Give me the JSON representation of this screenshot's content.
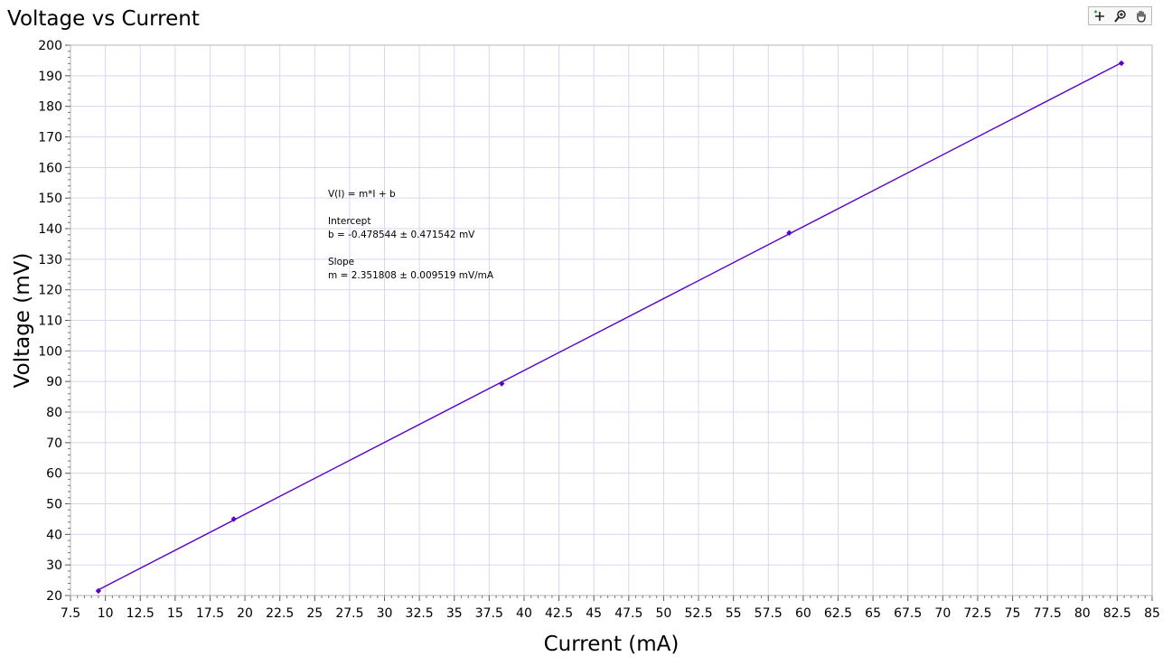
{
  "title": "Voltage vs Current",
  "toolbar": {
    "tools": [
      {
        "name": "zoom-crosshair-icon"
      },
      {
        "name": "zoom-magnifier-icon"
      },
      {
        "name": "pan-hand-icon"
      }
    ]
  },
  "annotation": {
    "equation": "V(I) = m*I + b",
    "intercept_label": "Intercept",
    "intercept_value": "b = -0.478544 ± 0.471542 mV",
    "slope_label": "Slope",
    "slope_value": "m = 2.351808 ± 0.009519 mV/mA"
  },
  "colors": {
    "series": "#5b00c4",
    "grid": "#d6d6f5",
    "frame": "#b4b4b4"
  },
  "chart_data": {
    "type": "scatter",
    "title": "Voltage vs Current",
    "xlabel": "Current (mA)",
    "ylabel": "Voltage (mV)",
    "xlim": [
      7.5,
      85
    ],
    "ylim": [
      20,
      200
    ],
    "grid": true,
    "xticks": [
      "7.5",
      "10",
      "12.5",
      "15",
      "17.5",
      "20",
      "22.5",
      "25",
      "27.5",
      "30",
      "32.5",
      "35",
      "37.5",
      "40",
      "42.5",
      "45",
      "47.5",
      "50",
      "52.5",
      "55",
      "57.5",
      "60",
      "62.5",
      "65",
      "67.5",
      "70",
      "72.5",
      "75",
      "77.5",
      "80",
      "82.5",
      "85"
    ],
    "yticks": [
      "20",
      "30",
      "40",
      "50",
      "60",
      "70",
      "80",
      "90",
      "100",
      "110",
      "120",
      "130",
      "140",
      "150",
      "160",
      "170",
      "180",
      "190",
      "200"
    ],
    "series": [
      {
        "x": [
          9.5,
          19.2,
          38.4,
          59.0,
          82.8
        ],
        "y": [
          21.5,
          45.0,
          89.3,
          138.6,
          194.1
        ]
      }
    ],
    "fit": {
      "type": "linear",
      "slope": 2.351808,
      "intercept": -0.478544,
      "x_range": [
        9.5,
        82.8
      ]
    }
  }
}
